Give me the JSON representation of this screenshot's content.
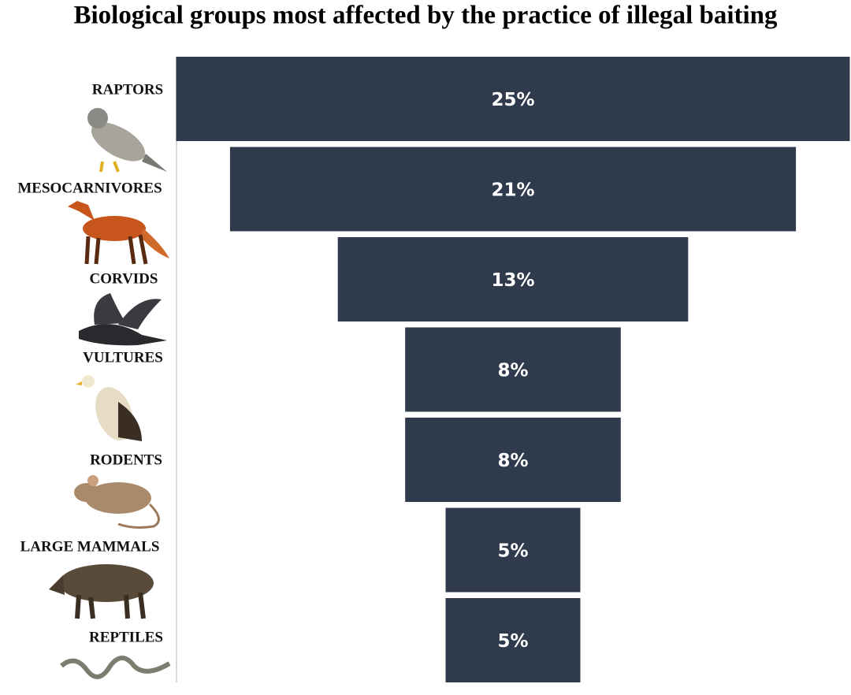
{
  "chart_data": {
    "type": "funnel",
    "title": "Biological groups most affected by the practice of illegal baiting",
    "categories": [
      "RAPTORS",
      "MESOCARNIVORES",
      "CORVIDS",
      "VULTURES",
      "RODENTS",
      "LARGE MAMMALS",
      "REPTILES"
    ],
    "values": [
      25,
      21,
      13,
      8,
      8,
      5,
      5
    ],
    "value_labels": [
      "25%",
      "21%",
      "13%",
      "8%",
      "8%",
      "5%",
      "5%"
    ],
    "color": "#2f3a4c"
  }
}
